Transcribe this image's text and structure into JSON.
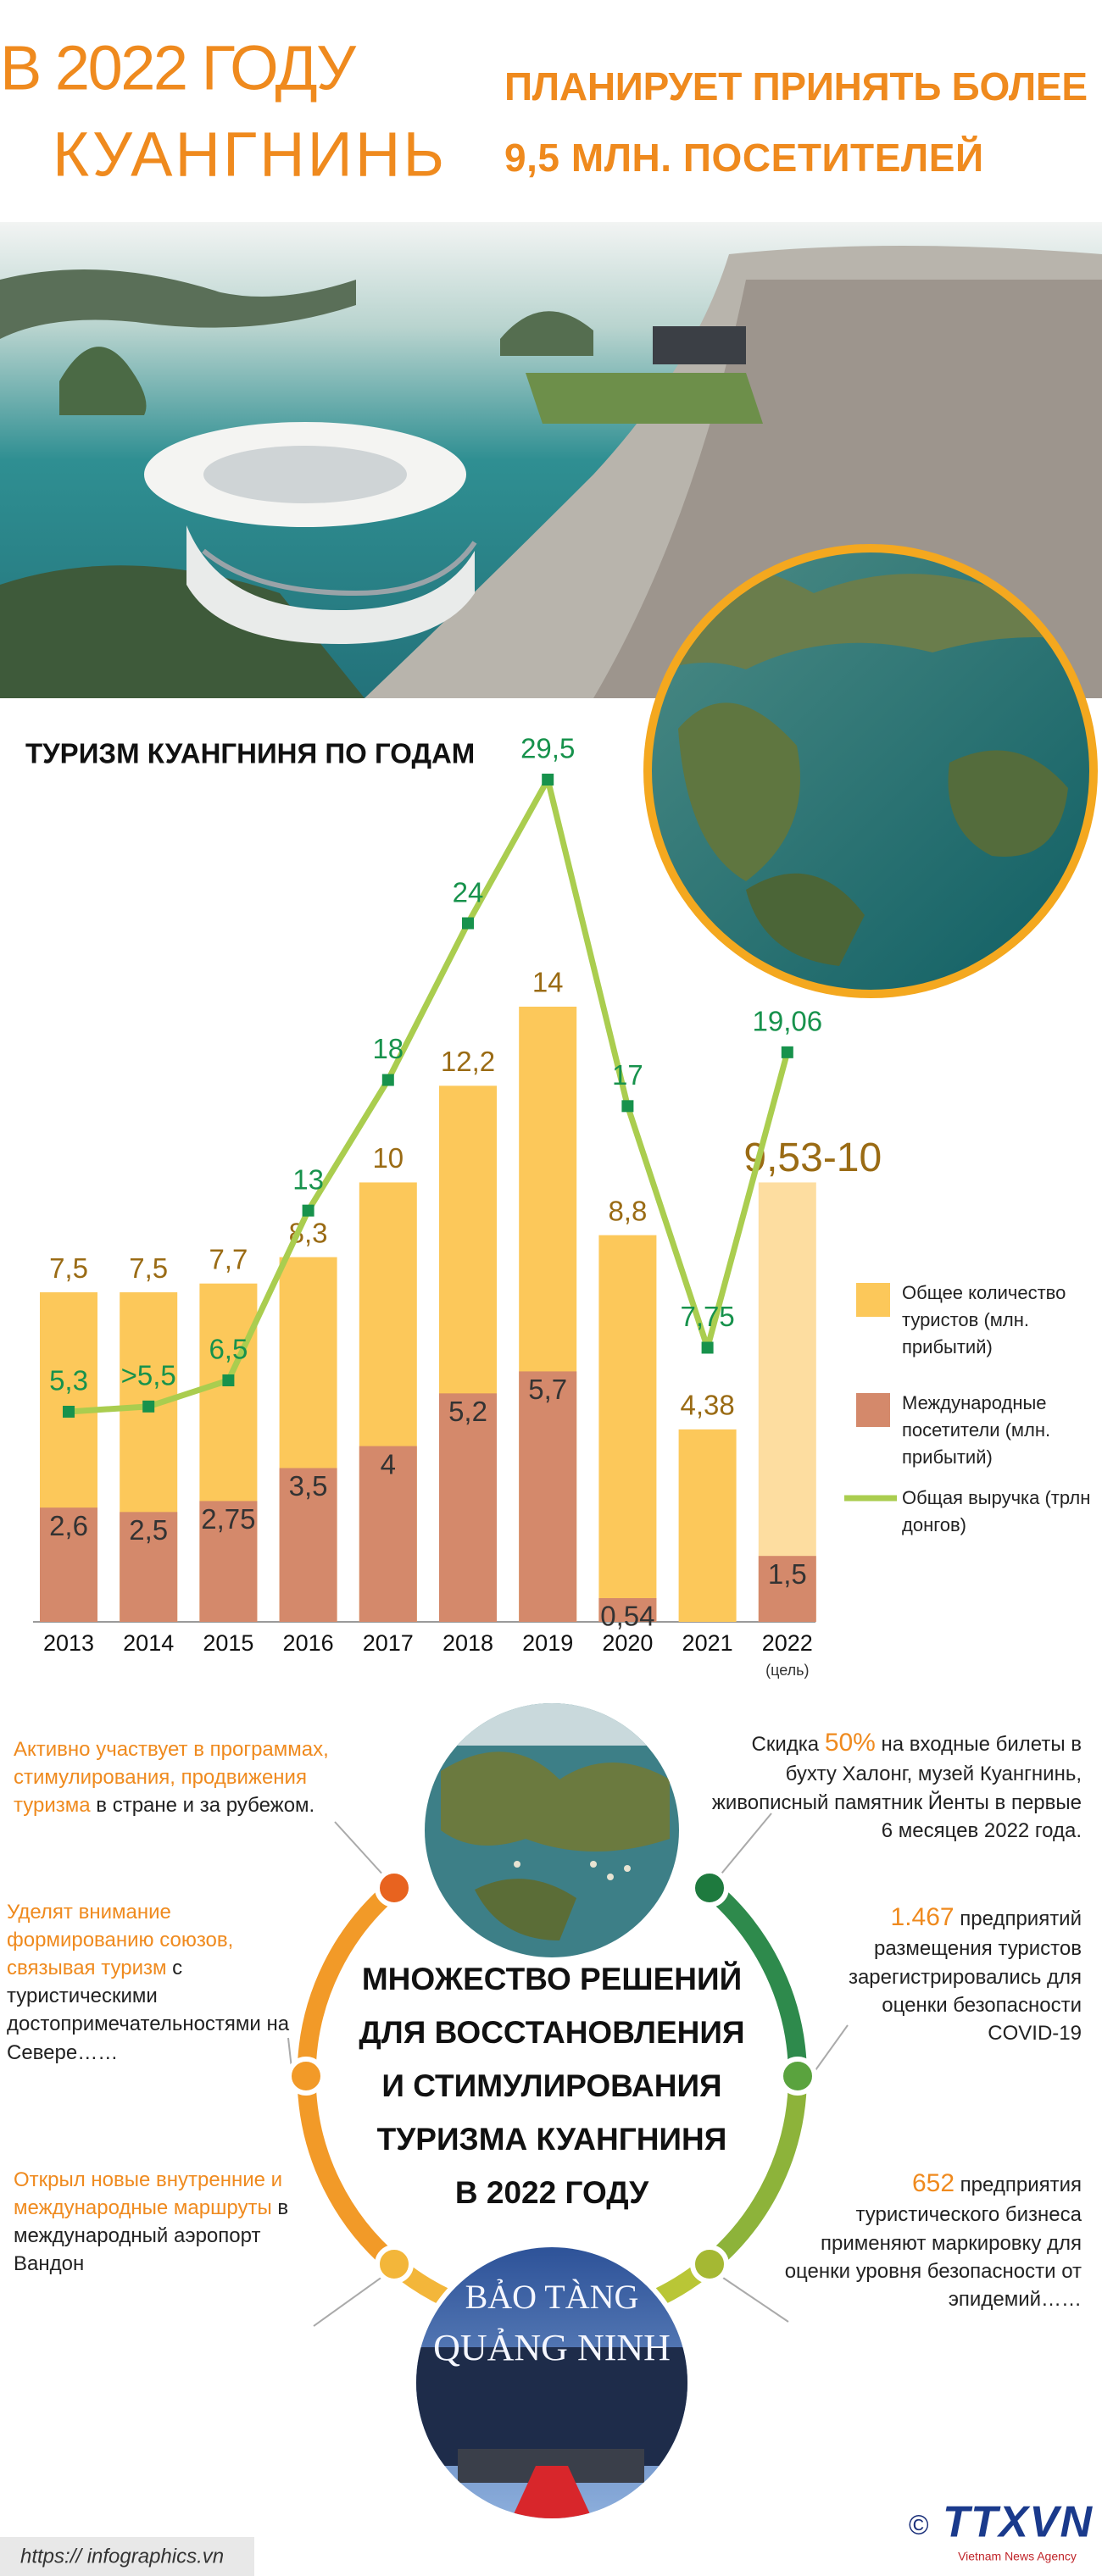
{
  "header": {
    "title_lines": [
      "В 2022 ГОДУ",
      "КУАНГНИНЬ"
    ],
    "subtitle_lines": [
      "ПЛАНИРУЕТ ПРИНЯТЬ БОЛЕЕ",
      "9,5 МЛН. ПОСЕТИТЕЛЕЙ"
    ]
  },
  "chart_data": {
    "type": "bar",
    "title": "ТУРИЗМ КУАНГНИНЯ ПО ГОДАМ",
    "categories": [
      "2013",
      "2014",
      "2015",
      "2016",
      "2017",
      "2018",
      "2019",
      "2020",
      "2021",
      "2022"
    ],
    "category_notes": [
      null,
      null,
      null,
      null,
      null,
      null,
      null,
      null,
      null,
      "(цель)"
    ],
    "series": [
      {
        "name": "Общее количество туристов (млн. прибытий)",
        "type": "bar",
        "color": "#fcc85a",
        "target_color": "#fddda0",
        "label_color": "#9a6b14",
        "values": [
          7.5,
          7.5,
          7.7,
          8.3,
          10,
          12.2,
          14,
          8.8,
          4.38,
          10
        ],
        "value_labels": [
          "7,5",
          "7,5",
          "7,7",
          "8,3",
          "10",
          "12,2",
          "14",
          "8,8",
          "4,38",
          "9,53-10"
        ]
      },
      {
        "name": "Международные посетители (млн. прибытий)",
        "type": "bar",
        "color": "#d4896b",
        "target_color": "#d4896b",
        "label_color": "#333333",
        "values": [
          2.6,
          2.5,
          2.75,
          3.5,
          4,
          5.2,
          5.7,
          0.54,
          null,
          1.5
        ],
        "value_labels": [
          "2,6",
          "2,5",
          "2,75",
          "3,5",
          "4",
          "5,2",
          "5,7",
          "0,54",
          null,
          "1,5"
        ]
      },
      {
        "name": "Общая выручка (трлн донгов)",
        "type": "line",
        "axis": "y2",
        "color": "#aacd4f",
        "marker_color": "#17924c",
        "label_color": "#17924c",
        "values": [
          5.3,
          5.5,
          6.5,
          13,
          18,
          24,
          29.5,
          17,
          7.75,
          19.06
        ],
        "value_labels": [
          "5,3",
          ">5,5",
          "6,5",
          "13",
          "18",
          "24",
          "29,5",
          "17",
          "7,75",
          "19,06"
        ]
      }
    ]
  },
  "solutions": {
    "title_lines": [
      "МНОЖЕСТВО РЕШЕНИЙ",
      "ДЛЯ ВОССТАНОВЛЕНИЯ",
      "И СТИМУЛИРОВАНИЯ",
      "ТУРИЗМА КУАНГНИНЯ",
      "В 2022 ГОДУ"
    ],
    "left": [
      [
        {
          "text": "Активно участвует в программах, стимулирования, продвижения туризма",
          "accent": true
        },
        {
          "text": " в стране и за рубежом.",
          "accent": false
        }
      ],
      [
        {
          "text": "Уделят внимание формированию союзов, связывая туризм",
          "accent": true
        },
        {
          "text": " с туристическими достопримечательностями на Севере……",
          "accent": false
        }
      ],
      [
        {
          "text": "Открыл новые внутренние и международные маршруты",
          "accent": true
        },
        {
          "text": " в международный аэропорт Вандон",
          "accent": false
        }
      ]
    ],
    "right": [
      [
        {
          "text": "Скидка ",
          "accent": false
        },
        {
          "text": "50%",
          "accent": true
        },
        {
          "text": " на входные билеты в бухту Халонг, музей Куангнинь, живописный памятник Йенты в первые 6 месяцев 2022 года.",
          "accent": false
        }
      ],
      [
        {
          "text": "1.467",
          "accent": true
        },
        {
          "text": " предприятий размещения туристов зарегистрировались для оценки безопасности COVID-19",
          "accent": false
        }
      ],
      [
        {
          "text": "652",
          "accent": true
        },
        {
          "text": " предприятия туристического бизнеса применяют маркировку для оценки уровня безопасности от эпидемий……",
          "accent": false
        }
      ]
    ]
  },
  "photos": {
    "museum_sign": [
      "BẢO TÀNG",
      "QUẢNG NINH"
    ]
  },
  "footer": {
    "url": "https:// infographics.vn",
    "copyright": "©",
    "agency": "TTXVN",
    "agency_en": "Vietnam News Agency"
  }
}
